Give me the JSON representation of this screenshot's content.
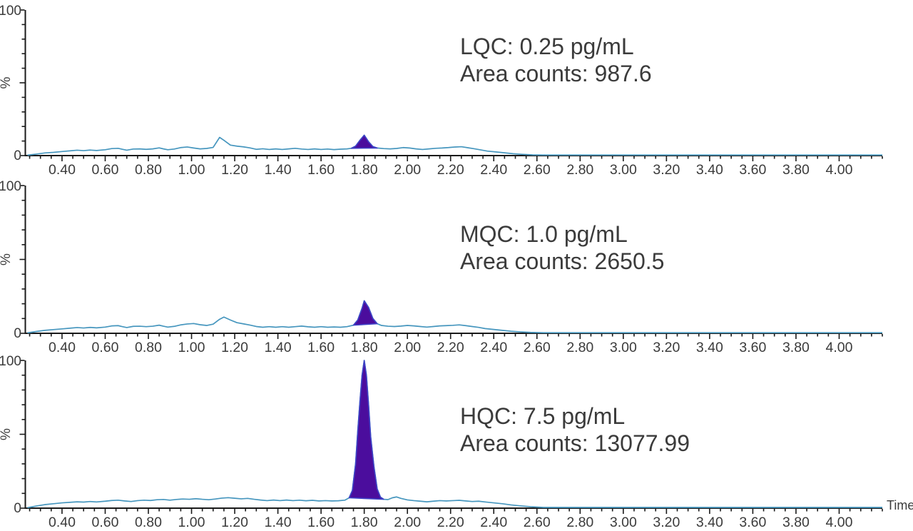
{
  "figure": {
    "x_axis": {
      "label": "Time",
      "min": 0.23,
      "max": 4.2,
      "major_tick_step": 0.2,
      "minor_tick_step": 0.05,
      "tick_labels": [
        "0.40",
        "0.60",
        "0.80",
        "1.00",
        "1.20",
        "1.40",
        "1.60",
        "1.80",
        "2.00",
        "2.20",
        "2.40",
        "2.60",
        "2.80",
        "3.00",
        "3.20",
        "3.40",
        "3.60",
        "3.80",
        "4.00"
      ]
    },
    "y_axis": {
      "label": "%",
      "min": 0,
      "max": 100,
      "tick_labels": [
        "0",
        "100"
      ],
      "minor_tick_step": 10
    },
    "colors": {
      "trace": "#4696be",
      "peak_fill": "#4b0d9d",
      "peak_stroke": "#3e42c6",
      "axis": "#1a1a1a",
      "text": "#3b3b3b"
    }
  },
  "chart_data": [
    {
      "type": "line",
      "name": "LQC",
      "annotation": {
        "line1": "LQC: 0.25 pg/mL",
        "line2": "Area counts: 987.6"
      },
      "concentration_pg_mL": 0.25,
      "area_counts": 987.6,
      "xlabel": "Time",
      "ylabel": "%",
      "xlim": [
        0.23,
        4.2
      ],
      "ylim": [
        0,
        100
      ],
      "peak": {
        "retention_time": 1.8,
        "height_pct": 14,
        "fill_range": [
          1.73,
          1.86
        ]
      },
      "trace": [
        [
          0.24,
          0.3
        ],
        [
          0.28,
          1.0
        ],
        [
          0.32,
          1.8
        ],
        [
          0.36,
          2.2
        ],
        [
          0.4,
          2.8
        ],
        [
          0.44,
          3.3
        ],
        [
          0.47,
          3.7
        ],
        [
          0.5,
          3.4
        ],
        [
          0.53,
          3.8
        ],
        [
          0.56,
          3.5
        ],
        [
          0.6,
          4.0
        ],
        [
          0.63,
          4.8
        ],
        [
          0.66,
          5.0
        ],
        [
          0.68,
          4.3
        ],
        [
          0.7,
          3.7
        ],
        [
          0.73,
          4.5
        ],
        [
          0.76,
          4.6
        ],
        [
          0.79,
          4.3
        ],
        [
          0.82,
          4.6
        ],
        [
          0.85,
          5.3
        ],
        [
          0.87,
          4.6
        ],
        [
          0.89,
          4.0
        ],
        [
          0.92,
          4.5
        ],
        [
          0.95,
          5.5
        ],
        [
          0.98,
          5.9
        ],
        [
          1.01,
          5.2
        ],
        [
          1.04,
          4.6
        ],
        [
          1.07,
          4.9
        ],
        [
          1.1,
          5.6
        ],
        [
          1.13,
          12.5
        ],
        [
          1.15,
          10.5
        ],
        [
          1.18,
          7.2
        ],
        [
          1.21,
          6.5
        ],
        [
          1.24,
          6.0
        ],
        [
          1.27,
          5.3
        ],
        [
          1.3,
          4.3
        ],
        [
          1.33,
          4.7
        ],
        [
          1.36,
          4.2
        ],
        [
          1.39,
          4.6
        ],
        [
          1.42,
          4.2
        ],
        [
          1.45,
          4.6
        ],
        [
          1.48,
          5.0
        ],
        [
          1.51,
          4.5
        ],
        [
          1.54,
          4.2
        ],
        [
          1.57,
          4.6
        ],
        [
          1.6,
          4.2
        ],
        [
          1.63,
          4.5
        ],
        [
          1.66,
          4.1
        ],
        [
          1.69,
          4.4
        ],
        [
          1.72,
          4.6
        ],
        [
          1.74,
          5.0
        ],
        [
          1.76,
          6.5
        ],
        [
          1.78,
          10.5
        ],
        [
          1.8,
          14.0
        ],
        [
          1.82,
          9.5
        ],
        [
          1.84,
          6.2
        ],
        [
          1.86,
          5.2
        ],
        [
          1.89,
          4.8
        ],
        [
          1.92,
          4.6
        ],
        [
          1.95,
          4.9
        ],
        [
          1.98,
          5.5
        ],
        [
          2.01,
          5.2
        ],
        [
          2.04,
          4.6
        ],
        [
          2.07,
          4.2
        ],
        [
          2.1,
          4.6
        ],
        [
          2.13,
          5.0
        ],
        [
          2.16,
          5.2
        ],
        [
          2.19,
          5.5
        ],
        [
          2.22,
          5.9
        ],
        [
          2.25,
          6.1
        ],
        [
          2.28,
          5.4
        ],
        [
          2.31,
          4.7
        ],
        [
          2.34,
          3.9
        ],
        [
          2.37,
          3.1
        ],
        [
          2.41,
          2.5
        ],
        [
          2.45,
          1.9
        ],
        [
          2.49,
          1.3
        ],
        [
          2.53,
          0.9
        ],
        [
          2.58,
          0.5
        ],
        [
          2.64,
          0.4
        ],
        [
          4.2,
          0.4
        ]
      ]
    },
    {
      "type": "line",
      "name": "MQC",
      "annotation": {
        "line1": "MQC: 1.0 pg/mL",
        "line2": "Area counts: 2650.5"
      },
      "concentration_pg_mL": 1.0,
      "area_counts": 2650.5,
      "xlabel": "Time",
      "ylabel": "%",
      "xlim": [
        0.23,
        4.2
      ],
      "ylim": [
        0,
        100
      ],
      "peak": {
        "retention_time": 1.8,
        "height_pct": 22,
        "fill_range": [
          1.74,
          1.87
        ]
      },
      "trace": [
        [
          0.24,
          0.3
        ],
        [
          0.28,
          1.2
        ],
        [
          0.32,
          2.0
        ],
        [
          0.36,
          2.5
        ],
        [
          0.4,
          3.0
        ],
        [
          0.44,
          3.5
        ],
        [
          0.47,
          3.9
        ],
        [
          0.5,
          3.6
        ],
        [
          0.53,
          4.0
        ],
        [
          0.56,
          3.7
        ],
        [
          0.6,
          4.2
        ],
        [
          0.63,
          5.0
        ],
        [
          0.66,
          5.2
        ],
        [
          0.68,
          4.5
        ],
        [
          0.7,
          3.9
        ],
        [
          0.73,
          4.7
        ],
        [
          0.76,
          4.8
        ],
        [
          0.79,
          4.5
        ],
        [
          0.82,
          4.8
        ],
        [
          0.85,
          5.5
        ],
        [
          0.87,
          4.8
        ],
        [
          0.89,
          4.2
        ],
        [
          0.92,
          4.7
        ],
        [
          0.95,
          5.7
        ],
        [
          0.98,
          6.3
        ],
        [
          1.01,
          6.6
        ],
        [
          1.04,
          5.8
        ],
        [
          1.07,
          5.3
        ],
        [
          1.1,
          6.2
        ],
        [
          1.13,
          9.5
        ],
        [
          1.15,
          11.0
        ],
        [
          1.18,
          9.0
        ],
        [
          1.21,
          7.2
        ],
        [
          1.24,
          6.4
        ],
        [
          1.27,
          5.6
        ],
        [
          1.3,
          4.6
        ],
        [
          1.33,
          4.1
        ],
        [
          1.36,
          4.5
        ],
        [
          1.39,
          4.1
        ],
        [
          1.42,
          4.5
        ],
        [
          1.45,
          4.1
        ],
        [
          1.48,
          4.5
        ],
        [
          1.51,
          4.9
        ],
        [
          1.54,
          4.4
        ],
        [
          1.57,
          4.1
        ],
        [
          1.6,
          4.5
        ],
        [
          1.63,
          4.1
        ],
        [
          1.66,
          4.3
        ],
        [
          1.69,
          4.1
        ],
        [
          1.72,
          4.5
        ],
        [
          1.75,
          5.5
        ],
        [
          1.77,
          9.0
        ],
        [
          1.79,
          17.0
        ],
        [
          1.8,
          22.0
        ],
        [
          1.82,
          17.5
        ],
        [
          1.84,
          10.0
        ],
        [
          1.86,
          6.5
        ],
        [
          1.88,
          5.3
        ],
        [
          1.91,
          4.8
        ],
        [
          1.94,
          4.6
        ],
        [
          1.97,
          4.9
        ],
        [
          2.0,
          5.3
        ],
        [
          2.03,
          5.0
        ],
        [
          2.06,
          4.6
        ],
        [
          2.09,
          4.2
        ],
        [
          2.12,
          4.6
        ],
        [
          2.15,
          5.0
        ],
        [
          2.18,
          5.2
        ],
        [
          2.21,
          5.4
        ],
        [
          2.24,
          5.7
        ],
        [
          2.27,
          5.2
        ],
        [
          2.3,
          4.6
        ],
        [
          2.33,
          4.0
        ],
        [
          2.36,
          3.2
        ],
        [
          2.4,
          2.6
        ],
        [
          2.44,
          2.0
        ],
        [
          2.48,
          1.4
        ],
        [
          2.52,
          1.0
        ],
        [
          2.57,
          0.6
        ],
        [
          2.63,
          0.4
        ],
        [
          4.2,
          0.4
        ]
      ]
    },
    {
      "type": "line",
      "name": "HQC",
      "annotation": {
        "line1": "HQC: 7.5 pg/mL",
        "line2": "Area counts: 13077.99"
      },
      "concentration_pg_mL": 7.5,
      "area_counts": 13077.99,
      "xlabel": "Time",
      "ylabel": "%",
      "xlim": [
        0.23,
        4.2
      ],
      "ylim": [
        0,
        100
      ],
      "peak": {
        "retention_time": 1.8,
        "height_pct": 100,
        "fill_range": [
          1.73,
          1.89
        ]
      },
      "trace": [
        [
          0.24,
          0.3
        ],
        [
          0.28,
          1.4
        ],
        [
          0.32,
          2.4
        ],
        [
          0.36,
          3.0
        ],
        [
          0.4,
          3.6
        ],
        [
          0.44,
          4.0
        ],
        [
          0.47,
          4.3
        ],
        [
          0.5,
          4.1
        ],
        [
          0.53,
          4.5
        ],
        [
          0.56,
          4.2
        ],
        [
          0.6,
          4.7
        ],
        [
          0.63,
          5.2
        ],
        [
          0.66,
          5.4
        ],
        [
          0.69,
          4.9
        ],
        [
          0.72,
          4.5
        ],
        [
          0.75,
          5.1
        ],
        [
          0.78,
          5.4
        ],
        [
          0.81,
          5.2
        ],
        [
          0.84,
          5.7
        ],
        [
          0.87,
          5.9
        ],
        [
          0.9,
          5.4
        ],
        [
          0.93,
          5.9
        ],
        [
          0.96,
          6.2
        ],
        [
          0.99,
          6.0
        ],
        [
          1.02,
          6.4
        ],
        [
          1.05,
          6.0
        ],
        [
          1.08,
          5.7
        ],
        [
          1.11,
          6.2
        ],
        [
          1.14,
          6.8
        ],
        [
          1.17,
          7.1
        ],
        [
          1.2,
          6.7
        ],
        [
          1.23,
          6.3
        ],
        [
          1.26,
          6.6
        ],
        [
          1.29,
          6.0
        ],
        [
          1.32,
          5.5
        ],
        [
          1.35,
          5.1
        ],
        [
          1.38,
          5.5
        ],
        [
          1.41,
          5.1
        ],
        [
          1.44,
          5.5
        ],
        [
          1.47,
          5.1
        ],
        [
          1.5,
          5.4
        ],
        [
          1.53,
          5.0
        ],
        [
          1.56,
          5.3
        ],
        [
          1.59,
          4.9
        ],
        [
          1.62,
          5.1
        ],
        [
          1.65,
          4.9
        ],
        [
          1.68,
          5.0
        ],
        [
          1.71,
          5.4
        ],
        [
          1.73,
          7.0
        ],
        [
          1.745,
          12.0
        ],
        [
          1.76,
          30.0
        ],
        [
          1.77,
          52.0
        ],
        [
          1.78,
          72.0
        ],
        [
          1.79,
          90.0
        ],
        [
          1.8,
          100.0
        ],
        [
          1.81,
          90.0
        ],
        [
          1.82,
          70.0
        ],
        [
          1.83,
          48.0
        ],
        [
          1.845,
          28.0
        ],
        [
          1.86,
          13.0
        ],
        [
          1.875,
          7.5
        ],
        [
          1.89,
          6.0
        ],
        [
          1.91,
          5.8
        ],
        [
          1.93,
          7.0
        ],
        [
          1.95,
          7.6
        ],
        [
          1.97,
          6.6
        ],
        [
          2.0,
          5.6
        ],
        [
          2.03,
          5.1
        ],
        [
          2.06,
          4.7
        ],
        [
          2.09,
          4.3
        ],
        [
          2.12,
          4.7
        ],
        [
          2.15,
          5.1
        ],
        [
          2.18,
          4.9
        ],
        [
          2.21,
          5.1
        ],
        [
          2.24,
          5.3
        ],
        [
          2.27,
          4.9
        ],
        [
          2.3,
          4.5
        ],
        [
          2.33,
          4.7
        ],
        [
          2.36,
          4.2
        ],
        [
          2.4,
          3.6
        ],
        [
          2.44,
          3.0
        ],
        [
          2.48,
          2.2
        ],
        [
          2.52,
          1.6
        ],
        [
          2.57,
          1.0
        ],
        [
          2.63,
          0.5
        ],
        [
          4.2,
          0.5
        ]
      ]
    }
  ]
}
